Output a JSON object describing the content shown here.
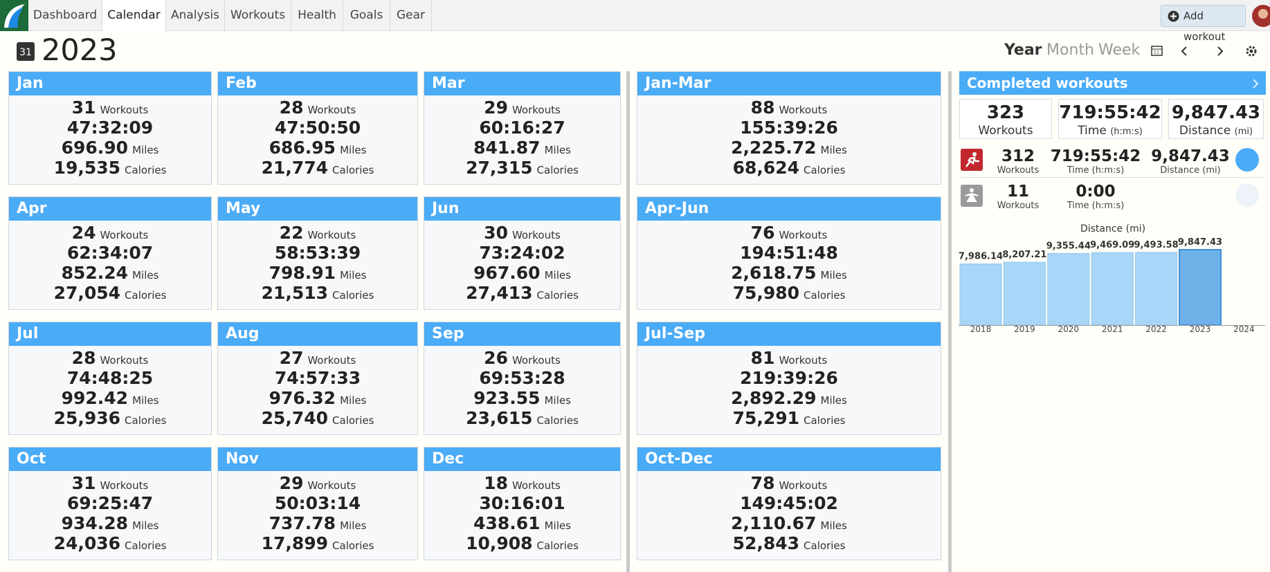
{
  "nav": {
    "tabs": [
      "Dashboard",
      "Calendar",
      "Analysis",
      "Workouts",
      "Health",
      "Goals",
      "Gear"
    ],
    "active_tab": "Calendar",
    "add_workout": "Add workout"
  },
  "header": {
    "icon_day": "31",
    "year": "2023",
    "views": [
      "Year",
      "Month",
      "Week"
    ],
    "active_view": "Year"
  },
  "units": {
    "workouts": "Workouts",
    "miles": "Miles",
    "calories": "Calories"
  },
  "months": [
    {
      "name": "Jan",
      "workouts": "31",
      "time": "47:32:09",
      "miles": "696.90",
      "calories": "19,535"
    },
    {
      "name": "Feb",
      "workouts": "28",
      "time": "47:50:50",
      "miles": "686.95",
      "calories": "21,774"
    },
    {
      "name": "Mar",
      "workouts": "29",
      "time": "60:16:27",
      "miles": "841.87",
      "calories": "27,315"
    },
    {
      "name": "Apr",
      "workouts": "24",
      "time": "62:34:07",
      "miles": "852.24",
      "calories": "27,054"
    },
    {
      "name": "May",
      "workouts": "22",
      "time": "58:53:39",
      "miles": "798.91",
      "calories": "21,513"
    },
    {
      "name": "Jun",
      "workouts": "30",
      "time": "73:24:02",
      "miles": "967.60",
      "calories": "27,413"
    },
    {
      "name": "Jul",
      "workouts": "28",
      "time": "74:48:25",
      "miles": "992.42",
      "calories": "25,936"
    },
    {
      "name": "Aug",
      "workouts": "27",
      "time": "74:57:33",
      "miles": "976.32",
      "calories": "25,740"
    },
    {
      "name": "Sep",
      "workouts": "26",
      "time": "69:53:28",
      "miles": "923.55",
      "calories": "23,615"
    },
    {
      "name": "Oct",
      "workouts": "31",
      "time": "69:25:47",
      "miles": "934.28",
      "calories": "24,036"
    },
    {
      "name": "Nov",
      "workouts": "29",
      "time": "50:03:14",
      "miles": "737.78",
      "calories": "17,899"
    },
    {
      "name": "Dec",
      "workouts": "18",
      "time": "30:16:01",
      "miles": "438.61",
      "calories": "10,908"
    }
  ],
  "quarters": [
    {
      "name": "Jan-Mar",
      "workouts": "88",
      "time": "155:39:26",
      "miles": "2,225.72",
      "calories": "68,624"
    },
    {
      "name": "Apr-Jun",
      "workouts": "76",
      "time": "194:51:48",
      "miles": "2,618.75",
      "calories": "75,980"
    },
    {
      "name": "Jul-Sep",
      "workouts": "81",
      "time": "219:39:26",
      "miles": "2,892.29",
      "calories": "75,291"
    },
    {
      "name": "Oct-Dec",
      "workouts": "78",
      "time": "149:45:02",
      "miles": "2,110.67",
      "calories": "52,843"
    }
  ],
  "summary": {
    "title": "Completed workouts",
    "totals": [
      {
        "value": "323",
        "label": "Workouts"
      },
      {
        "value": "719:55:42",
        "label": "Time",
        "unit": "(h:m:s)"
      },
      {
        "value": "9,847.43",
        "label": "Distance",
        "unit": "(mi)"
      }
    ],
    "types": [
      {
        "workouts": "312",
        "workouts_label": "Workouts",
        "time": "719:55:42",
        "time_label": "Time (h:m:s)",
        "distance": "9,847.43",
        "distance_label": "Distance (mi)"
      },
      {
        "workouts": "11",
        "workouts_label": "Workouts",
        "time": "0:00",
        "time_label": "Time (h:m:s)"
      }
    ]
  },
  "distance_chart": {
    "type": "bar",
    "title": "Distance (mi)",
    "color": "#a9d6f8",
    "categories": [
      "2018",
      "2019",
      "2020",
      "2021",
      "2022",
      "2023",
      "2024"
    ],
    "values": [
      7986.14,
      8207.21,
      9355.44,
      9469.09,
      9493.58,
      9847.43,
      null
    ],
    "value_labels": [
      "7,986.14",
      "8,207.21",
      "9,355.44",
      "9,469.09",
      "9,493.58",
      "9,847.43",
      null
    ]
  }
}
